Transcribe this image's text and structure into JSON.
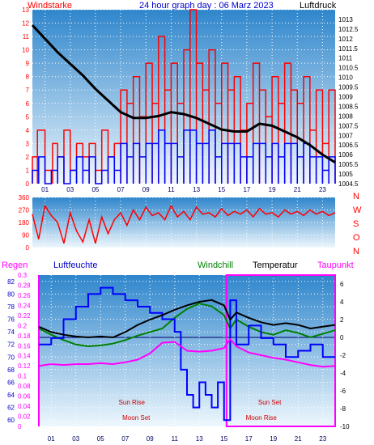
{
  "title": "24 hour graph day : 06 Marz 2023",
  "colors": {
    "wind_speed": "#ff0000",
    "wind_gust_base": "#0000ff",
    "pressure": "#000000",
    "direction": "#ff0000",
    "humidity": "#0000ff",
    "windchill": "#008000",
    "temperature": "#000000",
    "dewpoint": "#ff00ff",
    "rain_axis": "#ff00ff",
    "panel_top": "#3a8fd0",
    "panel_bottom": "#e8f4fc",
    "event_text": "#cc0000"
  },
  "chart_data": [
    {
      "type": "line",
      "name": "wind_pressure",
      "left_label": "Windstarke",
      "right_label": "Luftdruck",
      "x_ticks": [
        "01",
        "03",
        "05",
        "07",
        "09",
        "11",
        "13",
        "15",
        "17",
        "19",
        "21",
        "23"
      ],
      "x_range": [
        0,
        24
      ],
      "y_left_ticks": [
        "0",
        "1",
        "2",
        "3",
        "4",
        "5",
        "6",
        "7",
        "8",
        "9",
        "10",
        "11",
        "12",
        "13"
      ],
      "y_left_range": [
        0,
        13
      ],
      "y_right_ticks": [
        "1004.5",
        "1005",
        "1005.5",
        "1006",
        "1006.5",
        "1007",
        "1007.5",
        "1008",
        "1008.5",
        "1009",
        "1009.5",
        "1010",
        "1010.5",
        "1011",
        "1011.5",
        "1012",
        "1012.5",
        "1013"
      ],
      "y_right_range": [
        1004.5,
        1013.5
      ],
      "series": [
        {
          "key": "pressure",
          "axis": "right",
          "x": [
            0,
            1,
            2,
            3,
            4,
            5,
            6,
            7,
            8,
            9,
            10,
            11,
            12,
            13,
            14,
            15,
            16,
            17,
            18,
            19,
            20,
            21,
            22,
            23,
            24
          ],
          "values": [
            1012.7,
            1012.0,
            1011.3,
            1010.7,
            1010.1,
            1009.4,
            1008.8,
            1008.2,
            1007.9,
            1007.9,
            1008.0,
            1008.2,
            1008.1,
            1007.9,
            1007.6,
            1007.3,
            1007.2,
            1007.2,
            1007.6,
            1007.5,
            1007.2,
            1006.9,
            1006.5,
            1006.0,
            1005.6
          ]
        },
        {
          "key": "wind_gust",
          "axis": "left",
          "x": [
            0,
            0.4,
            1,
            1.6,
            2,
            2.5,
            3,
            3.5,
            4,
            4.5,
            5,
            5.5,
            6,
            6.5,
            7,
            7.5,
            8,
            8.5,
            9,
            9.5,
            10,
            10.5,
            11,
            11.5,
            12,
            12.5,
            13,
            13.5,
            14,
            14.5,
            15,
            15.5,
            16,
            16.5,
            17,
            17.5,
            18,
            18.5,
            19,
            19.5,
            20,
            20.5,
            21,
            21.5,
            22,
            22.5,
            23,
            23.5,
            24
          ],
          "values": [
            2,
            4,
            1,
            3,
            2,
            4,
            1,
            3,
            2,
            3,
            1,
            4,
            2,
            3,
            7,
            6,
            8,
            5,
            9,
            6,
            11,
            7,
            9,
            6,
            10,
            13,
            9,
            7,
            10,
            6,
            9,
            7,
            8,
            4,
            6,
            9,
            7,
            5,
            8,
            6,
            9,
            7,
            6,
            8,
            4,
            7,
            3,
            7,
            7
          ]
        },
        {
          "key": "wind_base",
          "axis": "left",
          "x": [
            0,
            0.5,
            1,
            1.5,
            2,
            2.5,
            3,
            3.5,
            4,
            4.5,
            5,
            5.5,
            6,
            6.5,
            7,
            7.5,
            8,
            8.5,
            9,
            9.5,
            10,
            10.5,
            11,
            11.5,
            12,
            12.5,
            13,
            13.5,
            14,
            14.5,
            15,
            15.5,
            16,
            16.5,
            17,
            17.5,
            18,
            18.5,
            19,
            19.5,
            20,
            20.5,
            21,
            21.5,
            22,
            22.5,
            23,
            23.5,
            24
          ],
          "values": [
            1,
            2,
            0,
            1,
            2,
            0,
            1,
            2,
            1,
            2,
            0,
            1,
            2,
            1,
            3,
            2,
            3,
            2,
            3,
            3,
            4,
            3,
            3,
            2,
            4,
            4,
            3,
            3,
            4,
            2,
            3,
            3,
            3,
            2,
            2,
            3,
            3,
            2,
            3,
            2,
            3,
            3,
            2,
            3,
            2,
            2,
            1,
            2,
            1
          ]
        }
      ]
    },
    {
      "type": "line",
      "name": "wind_direction",
      "x_range": [
        0,
        24
      ],
      "y_ticks": [
        "0",
        "90",
        "180",
        "270",
        "360"
      ],
      "y_range": [
        0,
        360
      ],
      "right_labels": [
        "N",
        "W",
        "S",
        "O",
        "N"
      ],
      "series": [
        {
          "key": "direction",
          "x": [
            0,
            0.5,
            1,
            1.5,
            2,
            2.5,
            3,
            3.5,
            4,
            4.5,
            5,
            5.5,
            6,
            6.5,
            7,
            7.5,
            8,
            8.5,
            9,
            9.5,
            10,
            10.5,
            11,
            11.5,
            12,
            12.5,
            13,
            13.5,
            14,
            14.5,
            15,
            15.5,
            16,
            16.5,
            17,
            17.5,
            18,
            18.5,
            19,
            19.5,
            20,
            20.5,
            21,
            21.5,
            22,
            22.5,
            23,
            23.5,
            24
          ],
          "values": [
            240,
            60,
            300,
            230,
            180,
            30,
            250,
            120,
            40,
            200,
            30,
            220,
            100,
            200,
            250,
            160,
            270,
            200,
            290,
            230,
            250,
            200,
            300,
            220,
            260,
            200,
            290,
            240,
            250,
            220,
            280,
            230,
            260,
            240,
            270,
            220,
            280,
            240,
            250,
            220,
            270,
            240,
            260,
            230,
            270,
            240,
            260,
            230,
            250
          ]
        }
      ]
    },
    {
      "type": "line",
      "name": "temp_humidity",
      "labels": {
        "rain": "Regen",
        "humidity": "Luftfeuchte",
        "windchill": "Windchill",
        "temperature": "Temperatur",
        "dewpoint": "Taupunkt"
      },
      "x_ticks": [
        "01",
        "03",
        "05",
        "07",
        "09",
        "11",
        "13",
        "15",
        "17",
        "19",
        "21",
        "23"
      ],
      "x_range": [
        0,
        24
      ],
      "y_humidity_ticks": [
        "60",
        "62",
        "64",
        "66",
        "68",
        "70",
        "72",
        "74",
        "76",
        "78",
        "80",
        "82"
      ],
      "y_humidity_range": [
        59,
        83
      ],
      "y_rain_ticks": [
        "0",
        "0.02",
        "0.04",
        "0.06",
        "0.08",
        "0.1",
        "0.12",
        "0.14",
        "0.16",
        "0.18",
        "0.2",
        "0.22",
        "0.24",
        "0.26",
        "0.28",
        "0.3"
      ],
      "y_rain_range": [
        0,
        0.3
      ],
      "y_temp_ticks": [
        "-10",
        "-8",
        "-6",
        "-4",
        "-2",
        "0",
        "2",
        "4",
        "6"
      ],
      "y_temp_range": [
        -10,
        7
      ],
      "events": [
        {
          "label": "Sun Rise",
          "x": 6.2,
          "row": "upper"
        },
        {
          "label": "Sun Set",
          "x": 17.5,
          "row": "upper"
        },
        {
          "label": "Moon Set",
          "x": 6.5,
          "row": "lower"
        },
        {
          "label": "Moon Rise",
          "x": 16.5,
          "row": "lower"
        }
      ],
      "rain_period": [
        15.2,
        24
      ],
      "series": [
        {
          "key": "humidity",
          "axis": "humidity",
          "x": [
            0,
            1,
            2,
            3,
            4,
            5,
            6,
            7,
            8,
            9,
            10,
            11,
            11.5,
            12,
            12.5,
            13,
            13.5,
            14,
            14.5,
            15,
            15.5,
            16,
            17,
            18,
            19,
            20,
            21,
            22,
            23,
            24
          ],
          "values": [
            72,
            73,
            76,
            78,
            80,
            81,
            80,
            79,
            78,
            77,
            76,
            74,
            68,
            64,
            62,
            66,
            64,
            62,
            66,
            60,
            79,
            72,
            75,
            73,
            72,
            70,
            71,
            72,
            70,
            70
          ]
        },
        {
          "key": "temperature",
          "axis": "temp",
          "x": [
            0,
            1,
            2,
            3,
            4,
            5,
            6,
            7,
            8,
            9,
            10,
            11,
            12,
            13,
            14,
            15,
            15.5,
            16,
            17,
            18,
            19,
            20,
            21,
            22,
            23,
            24
          ],
          "values": [
            1.2,
            0.6,
            0.3,
            0.1,
            0.0,
            0.1,
            0.0,
            0.6,
            1.4,
            2.0,
            2.5,
            3.1,
            3.6,
            4.0,
            4.2,
            3.6,
            2.0,
            2.8,
            2.2,
            1.7,
            1.4,
            1.6,
            1.4,
            1.0,
            1.2,
            1.4
          ]
        },
        {
          "key": "windchill",
          "axis": "temp",
          "x": [
            0,
            1,
            2,
            3,
            4,
            5,
            6,
            7,
            8,
            9,
            10,
            11,
            12,
            13,
            14,
            15,
            15.5,
            16,
            17,
            18,
            19,
            20,
            21,
            22,
            23,
            24
          ],
          "values": [
            1.0,
            0.3,
            -0.3,
            -0.8,
            -1.0,
            -0.9,
            -0.7,
            -0.3,
            0.2,
            0.6,
            1.0,
            2.2,
            3.2,
            3.8,
            3.5,
            2.5,
            1.0,
            2.0,
            1.2,
            0.6,
            0.3,
            0.8,
            0.5,
            0.0,
            0.4,
            0.8
          ]
        },
        {
          "key": "dewpoint",
          "axis": "temp",
          "x": [
            0,
            1,
            2,
            3,
            4,
            5,
            6,
            7,
            8,
            9,
            10,
            11,
            12,
            13,
            14,
            15,
            15.5,
            16,
            17,
            18,
            19,
            20,
            21,
            22,
            23,
            24
          ],
          "values": [
            -3.2,
            -3.0,
            -3.1,
            -3.0,
            -3.0,
            -2.9,
            -3.0,
            -2.8,
            -2.5,
            -1.8,
            -0.6,
            -0.5,
            -1.5,
            -1.6,
            -1.5,
            -1.2,
            -0.2,
            -1.0,
            -1.7,
            -2.0,
            -2.3,
            -2.5,
            -2.8,
            -3.1,
            -3.3,
            -3.2
          ]
        }
      ]
    }
  ]
}
